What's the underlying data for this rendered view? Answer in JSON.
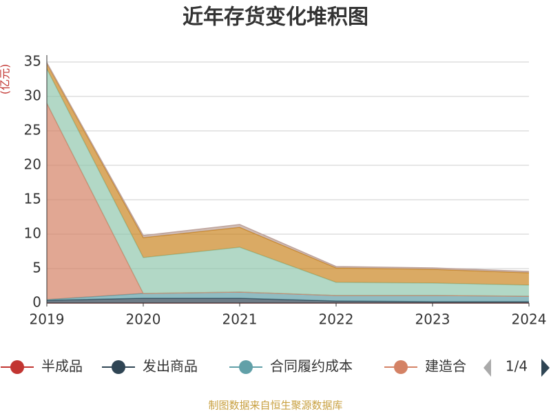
{
  "chart_data": {
    "type": "area",
    "stacked": true,
    "title": "近年存货变化堆积图",
    "ylabel": "(亿元)",
    "categories": [
      "2019",
      "2020",
      "2021",
      "2022",
      "2023",
      "2024"
    ],
    "ylim": [
      0,
      35
    ],
    "yticks": [
      0,
      5,
      10,
      15,
      20,
      25,
      30,
      35
    ],
    "grid": true,
    "series": [
      {
        "name": "半成品",
        "color": "#c23531",
        "values": [
          0,
          0,
          0,
          0,
          0,
          0
        ]
      },
      {
        "name": "发出商品",
        "color": "#2f4554",
        "values": [
          0.4,
          0.7,
          0.7,
          0.3,
          0.2,
          0.2
        ]
      },
      {
        "name": "合同履约成本",
        "color": "#61a0a8",
        "values": [
          0.1,
          0.7,
          0.9,
          0.8,
          0.9,
          0.8
        ]
      },
      {
        "name": "建造合",
        "color": "#d48265",
        "values": [
          28.5,
          0,
          0,
          0,
          0,
          0
        ]
      },
      {
        "color": "#91c7ae",
        "values": [
          5,
          5.2,
          6.5,
          1.9,
          1.8,
          1.6
        ]
      },
      {
        "color": "#ca8622",
        "values": [
          0.8,
          2.9,
          2.9,
          2.1,
          2.0,
          1.8
        ]
      },
      {
        "color": "#bda29a",
        "values": [
          0.1,
          0.3,
          0.4,
          0.2,
          0.2,
          0.2
        ]
      }
    ],
    "legend_page": "1/4",
    "source": "制图数据来自恒生聚源数据库"
  }
}
